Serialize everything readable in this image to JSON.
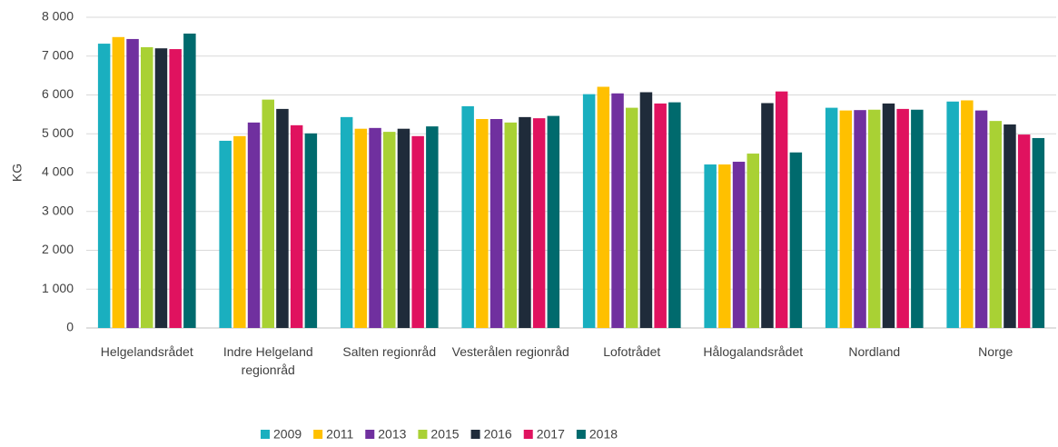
{
  "chart_data": {
    "type": "bar",
    "y_label": "KG",
    "categories": [
      "Helgelandsrådet",
      "Indre Helgeland regionråd",
      "Salten regionråd",
      "Vesterålen regionråd",
      "Lofotrådet",
      "Hålogalandsrådet",
      "Nordland",
      "Norge"
    ],
    "series": [
      {
        "name": "2009",
        "color": "#1aafbf",
        "values": [
          7320,
          4820,
          5430,
          5710,
          6020,
          4210,
          5670,
          5830
        ]
      },
      {
        "name": "2011",
        "color": "#ffc000",
        "values": [
          7490,
          4940,
          5130,
          5380,
          6210,
          4210,
          5600,
          5860
        ]
      },
      {
        "name": "2013",
        "color": "#70309f",
        "values": [
          7440,
          5290,
          5150,
          5380,
          6040,
          4280,
          5610,
          5600
        ]
      },
      {
        "name": "2015",
        "color": "#a9d134",
        "values": [
          7230,
          5880,
          5050,
          5290,
          5670,
          4490,
          5620,
          5330
        ]
      },
      {
        "name": "2016",
        "color": "#1f2b3a",
        "values": [
          7200,
          5640,
          5130,
          5430,
          6070,
          5790,
          5780,
          5240
        ]
      },
      {
        "name": "2017",
        "color": "#e0125f",
        "values": [
          7180,
          5220,
          4940,
          5400,
          5780,
          6090,
          5640,
          4980
        ]
      },
      {
        "name": "2018",
        "color": "#006a6d",
        "values": [
          7580,
          5010,
          5190,
          5460,
          5810,
          4520,
          5620,
          4890
        ]
      }
    ],
    "ylim": [
      0,
      8000
    ],
    "yticks": [
      0,
      {
        "value": 1000,
        "label": "1 000"
      },
      {
        "value": 2000,
        "label": "2 000"
      },
      {
        "value": 3000,
        "label": "3 000"
      },
      {
        "value": 4000,
        "label": "4 000"
      },
      {
        "value": 5000,
        "label": "5 000"
      },
      {
        "value": 6000,
        "label": "6 000"
      },
      {
        "value": 7000,
        "label": "7 000"
      },
      {
        "value": 8000,
        "label": "8 000"
      }
    ],
    "grid": true,
    "legend": "bottom"
  }
}
